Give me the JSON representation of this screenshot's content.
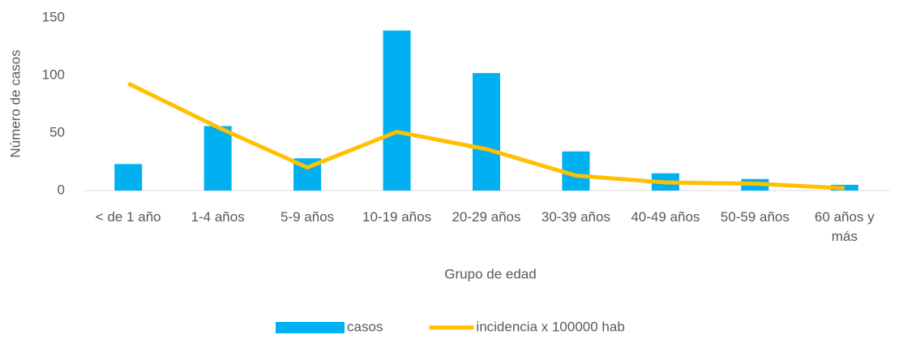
{
  "chart_data": {
    "type": "combo",
    "y_label": "Número de casos",
    "x_label": "Grupo de edad",
    "categories": [
      "< de 1 año",
      "1-4 años",
      "5-9 años",
      "10-19 años",
      "20-29 años",
      "30-39 años",
      "40-49 años",
      "50-59 años",
      "60 años y más"
    ],
    "series": [
      {
        "name": "casos",
        "type": "bar",
        "color": "#00b0f0",
        "values": [
          23,
          56,
          28,
          139,
          102,
          34,
          15,
          10,
          5
        ]
      },
      {
        "name": "incidencia x 100000 hab",
        "type": "line",
        "color": "#ffc000",
        "values": [
          93,
          55,
          20,
          51,
          36,
          13,
          7,
          6,
          2
        ]
      }
    ],
    "ylim": [
      0,
      150
    ],
    "yticks": [
      0,
      50,
      100,
      150
    ],
    "grid": false,
    "legend": "bottom"
  }
}
